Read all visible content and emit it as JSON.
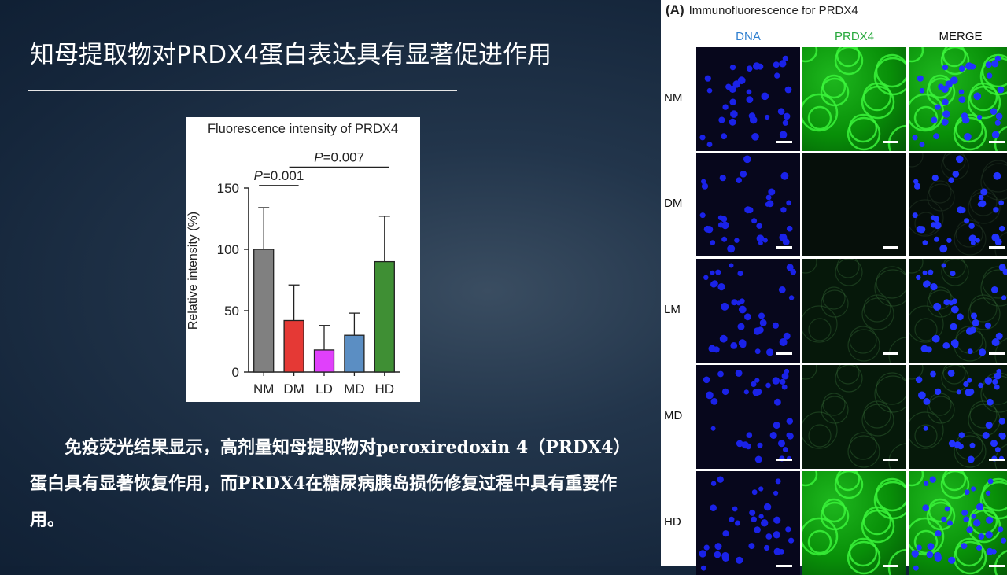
{
  "slide": {
    "title": "知母提取物对PRDX4蛋白表达具有显著促进作用",
    "paragraph": "免疫荧光结果显示，高剂量知母提取物对peroxiredoxin 4（PRDX4）蛋白具有显著恢复作用，而PRDX4在糖尿病胰岛损伤修复过程中具有重要作用。"
  },
  "chart_data": {
    "type": "bar",
    "title": "Fluorescence intensity of PRDX4",
    "xlabel": "",
    "ylabel": "Relative intensity (%)",
    "categories": [
      "NM",
      "DM",
      "LD",
      "MD",
      "HD"
    ],
    "values": [
      100,
      42,
      18,
      30,
      90
    ],
    "errors": [
      34,
      29,
      20,
      18,
      37
    ],
    "colors": [
      "#808080",
      "#e53935",
      "#e040fb",
      "#5b8ec3",
      "#3f8f34"
    ],
    "ylim": [
      0,
      150
    ],
    "yticks": [
      "0",
      "50",
      "100",
      "150"
    ],
    "annotations": [
      {
        "label_italic": "P",
        "label_rest": "=0.001",
        "from": "NM",
        "to": "DM"
      },
      {
        "label_italic": "P",
        "label_rest": "=0.007",
        "from": "DM",
        "to": "HD"
      }
    ]
  },
  "panel": {
    "letter": "(A)",
    "heading": "Immunofluorescence for PRDX4",
    "columns": [
      {
        "label": "DNA",
        "color": "#2f7fd0"
      },
      {
        "label": "PRDX4",
        "color": "#27a83c"
      },
      {
        "label": "MERGE",
        "color": "#111111"
      }
    ],
    "rows": [
      {
        "label": "NM",
        "green_level": 0.95
      },
      {
        "label": "DM",
        "green_level": 0.05
      },
      {
        "label": "LM",
        "green_level": 0.2
      },
      {
        "label": "MD",
        "green_level": 0.22
      },
      {
        "label": "HD",
        "green_level": 0.95
      }
    ]
  }
}
